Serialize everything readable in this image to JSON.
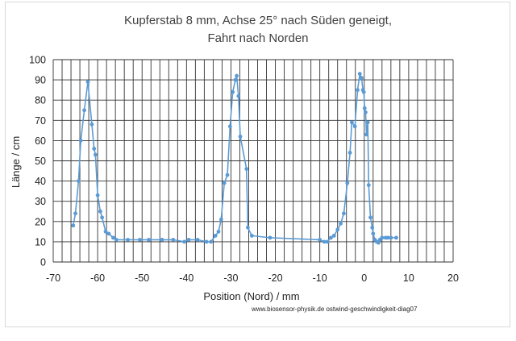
{
  "chart_data": {
    "type": "scatter",
    "title": [
      "Kupferstab 8 mm, Achse 25° nach Süden  geneigt,",
      "Fahrt nach Norden"
    ],
    "xlabel": "Position (Nord) / mm",
    "ylabel": "Länge / cm",
    "xlim": [
      -70,
      20
    ],
    "ylim": [
      0,
      100
    ],
    "x_ticks": [
      -70,
      -60,
      -50,
      -40,
      -30,
      -20,
      -10,
      0,
      10,
      20
    ],
    "y_ticks": [
      0,
      10,
      20,
      30,
      40,
      50,
      60,
      70,
      80,
      90,
      100
    ],
    "x_minor_step": 2,
    "grid": true,
    "legend": "none",
    "annotation": "www.biosensor-physik.de  ostwind-geschwindigkeit-diag07",
    "series": [
      {
        "color": "#5b9bd5",
        "style": "line-with-markers",
        "points": [
          [
            -65.5,
            18
          ],
          [
            -65,
            24
          ],
          [
            -64.3,
            40
          ],
          [
            -63.8,
            60
          ],
          [
            -63,
            75
          ],
          [
            -62.2,
            89
          ],
          [
            -61.3,
            68
          ],
          [
            -60.8,
            56
          ],
          [
            -60.5,
            53
          ],
          [
            -60,
            33
          ],
          [
            -59.4,
            25
          ],
          [
            -59,
            22
          ],
          [
            -58.2,
            15
          ],
          [
            -57.5,
            14
          ],
          [
            -56.5,
            12
          ],
          [
            -55.8,
            11
          ],
          [
            -53.2,
            11
          ],
          [
            -50.5,
            11
          ],
          [
            -48.5,
            11
          ],
          [
            -45.5,
            11
          ],
          [
            -43,
            11
          ],
          [
            -40.5,
            10
          ],
          [
            -39.5,
            11
          ],
          [
            -37.5,
            11
          ],
          [
            -35.5,
            10
          ],
          [
            -34.5,
            10
          ],
          [
            -33.5,
            13
          ],
          [
            -32.8,
            15
          ],
          [
            -32.2,
            21
          ],
          [
            -31.5,
            39
          ],
          [
            -30.8,
            43
          ],
          [
            -30.2,
            67
          ],
          [
            -29.6,
            84
          ],
          [
            -29,
            90
          ],
          [
            -28.7,
            92
          ],
          [
            -28.3,
            82
          ],
          [
            -27.9,
            62
          ],
          [
            -26.5,
            46
          ],
          [
            -26.2,
            17
          ],
          [
            -25.3,
            13
          ],
          [
            -21.2,
            12
          ],
          [
            -10,
            11
          ],
          [
            -9,
            10
          ],
          [
            -8.3,
            10
          ],
          [
            -7.5,
            12
          ],
          [
            -6.8,
            13
          ],
          [
            -6,
            16
          ],
          [
            -5.3,
            19
          ],
          [
            -4.6,
            24
          ],
          [
            -3.8,
            39
          ],
          [
            -3.2,
            54
          ],
          [
            -2.8,
            69
          ],
          [
            -2.1,
            67
          ],
          [
            -1.5,
            85
          ],
          [
            -1,
            93
          ],
          [
            -0.6,
            91
          ],
          [
            -0.3,
            85
          ],
          [
            -0.1,
            84
          ],
          [
            0.1,
            76
          ],
          [
            0.3,
            74
          ],
          [
            0.5,
            63
          ],
          [
            0.8,
            69
          ],
          [
            1,
            38
          ],
          [
            1.4,
            22
          ],
          [
            1.8,
            17
          ],
          [
            2,
            14
          ],
          [
            2.4,
            11
          ],
          [
            2.8,
            10
          ],
          [
            3.2,
            9.5
          ],
          [
            3.5,
            11
          ],
          [
            4,
            12
          ],
          [
            4.8,
            12
          ],
          [
            5.3,
            12
          ],
          [
            6,
            12
          ],
          [
            7.2,
            12
          ]
        ]
      }
    ]
  }
}
